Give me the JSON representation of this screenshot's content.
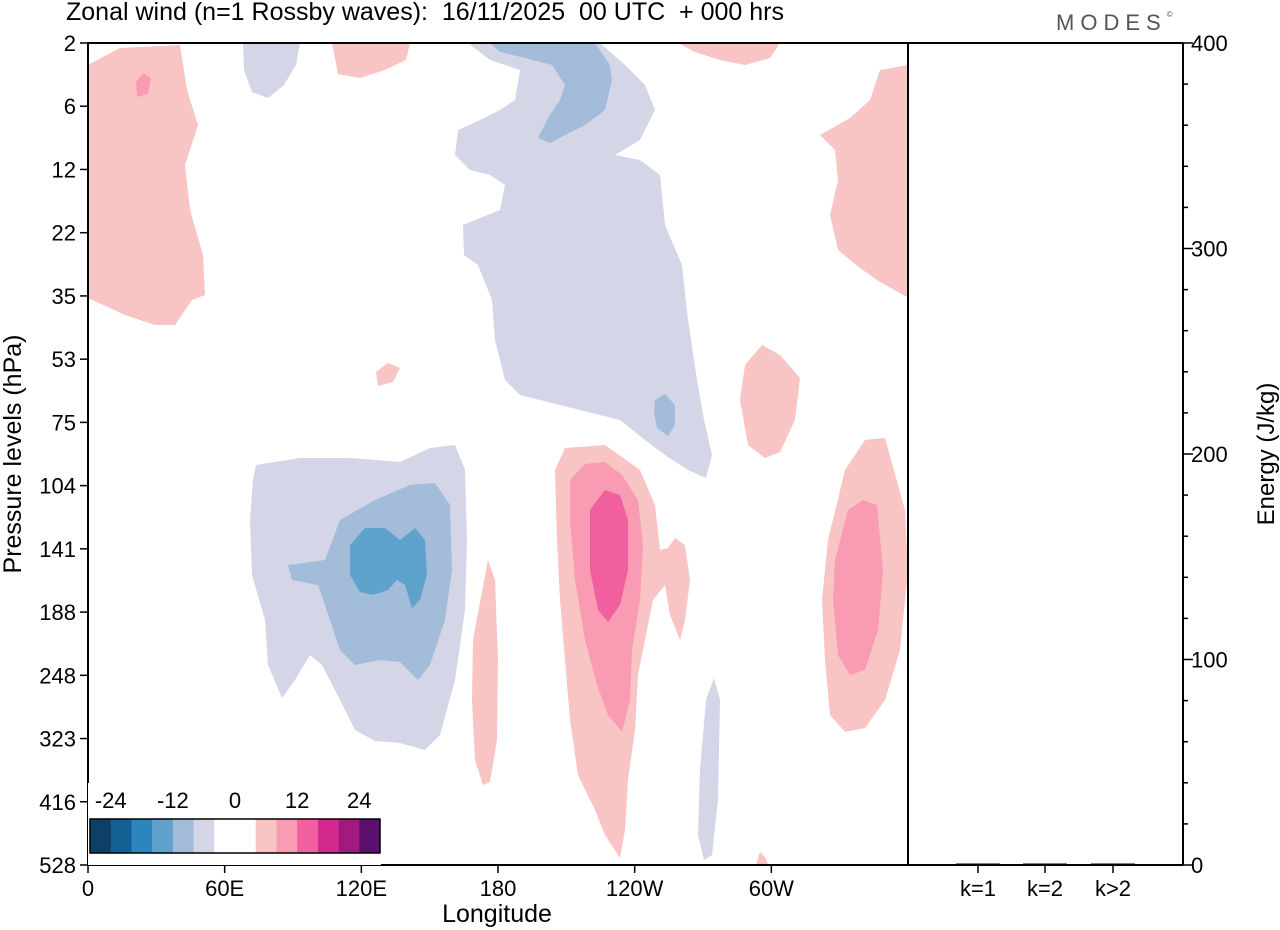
{
  "header": {
    "title": "Zonal wind (n=1 Rossby waves):  16/11/2025  00 UTC  + 000 hrs",
    "brand": "MODES",
    "brand_mark": "©"
  },
  "colors": {
    "neg_strong": "#5fa3cc",
    "neg_medium": "#a2bcd9",
    "neg_weak": "#d4d6e8",
    "pos_weak": "#f9c4c4",
    "pos_medium": "#f99bb3",
    "pos_strong": "#f0609e",
    "axis": "#000000"
  },
  "chart_data": [
    {
      "type": "heatmap",
      "title": "Zonal wind (n=1 Rossby waves):  16/11/2025  00 UTC  + 000 hrs",
      "xlabel": "Longitude",
      "ylabel": "Pressure levels (hPa)",
      "x_ticks": [
        {
          "lon": 0,
          "label": "0"
        },
        {
          "lon": 60,
          "label": "60E"
        },
        {
          "lon": 120,
          "label": "120E"
        },
        {
          "lon": 180,
          "label": "180"
        },
        {
          "lon": 240,
          "label": "120W"
        },
        {
          "lon": 300,
          "label": "60W"
        }
      ],
      "xlim": [
        0,
        360
      ],
      "y_levels": [
        "2",
        "6",
        "12",
        "22",
        "35",
        "53",
        "75",
        "104",
        "141",
        "188",
        "248",
        "323",
        "416",
        "528"
      ],
      "colorbar": {
        "labels": [
          "-24",
          "-12",
          "0",
          "12",
          "24"
        ],
        "label_positions": [
          -24,
          -12,
          0,
          12,
          24
        ],
        "colors": [
          "#0d4065",
          "#135e92",
          "#2c86bd",
          "#5fa3cc",
          "#a2bcd9",
          "#d4d6e8",
          "#ffffff",
          "#ffffff",
          "#f9c4c4",
          "#f99bb3",
          "#f0609e",
          "#d42a8f",
          "#a31a7e",
          "#5b0f6e"
        ]
      },
      "contour_features": [
        {
          "sign": "positive",
          "level": "weak",
          "lon_range": [
            0,
            50
          ],
          "levels": [
            "2",
            "35"
          ]
        },
        {
          "sign": "negative",
          "level": "weak",
          "lon_range": [
            165,
            275
          ],
          "levels": [
            "2",
            "104"
          ]
        },
        {
          "sign": "negative",
          "level": "medium",
          "lon_range": [
            200,
            235
          ],
          "levels": [
            "2",
            "6"
          ]
        },
        {
          "sign": "positive",
          "level": "weak",
          "lon_range": [
            320,
            360
          ],
          "levels": [
            "6",
            "35"
          ]
        },
        {
          "sign": "negative",
          "level": "weak",
          "lon_range": [
            70,
            165
          ],
          "levels": [
            "104",
            "323"
          ]
        },
        {
          "sign": "negative",
          "level": "medium",
          "lon_range": [
            85,
            150
          ],
          "levels": [
            "104",
            "248"
          ]
        },
        {
          "sign": "negative",
          "level": "strong",
          "lon_range": [
            115,
            145
          ],
          "levels": [
            "141",
            "188"
          ]
        },
        {
          "sign": "positive",
          "level": "weak",
          "lon_range": [
            205,
            265
          ],
          "levels": [
            "104",
            "528"
          ]
        },
        {
          "sign": "positive",
          "level": "medium",
          "lon_range": [
            210,
            245
          ],
          "levels": [
            "104",
            "323"
          ]
        },
        {
          "sign": "positive",
          "level": "strong",
          "lon_range": [
            220,
            240
          ],
          "levels": [
            "104",
            "188"
          ]
        },
        {
          "sign": "positive",
          "level": "weak",
          "lon_range": [
            320,
            360
          ],
          "levels": [
            "104",
            "323"
          ]
        },
        {
          "sign": "positive",
          "level": "medium",
          "lon_range": [
            330,
            350
          ],
          "levels": [
            "104",
            "248"
          ]
        }
      ]
    },
    {
      "type": "bar",
      "ylabel": "Energy (J/kg)",
      "categories": [
        "k=1",
        "k=2",
        "k>2"
      ],
      "values": [
        0.5,
        0.1,
        0.3
      ],
      "ylim": [
        0,
        400
      ],
      "y_ticks": [
        "0",
        "100",
        "200",
        "300",
        "400"
      ]
    }
  ]
}
